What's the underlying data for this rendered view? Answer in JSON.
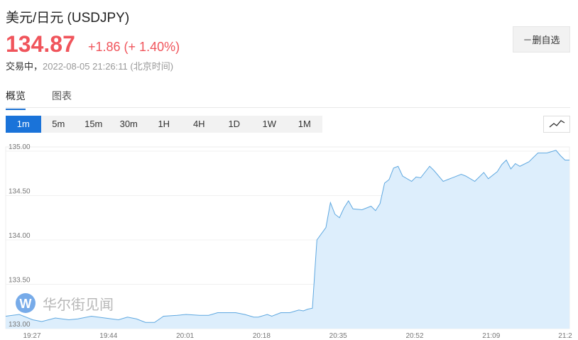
{
  "header": {
    "title": "美元/日元  (USDJPY)",
    "price": "134.87",
    "change": "+1.86 (+ 1.40%)",
    "status": "交易中，",
    "timestamp": "2022-08-05 21:26:11  (北京时间)",
    "watch_button": "－删自选"
  },
  "tabs": [
    {
      "label": "概览",
      "active": true
    },
    {
      "label": "图表",
      "active": false
    }
  ],
  "ranges": [
    {
      "label": "1m",
      "active": true
    },
    {
      "label": "5m"
    },
    {
      "label": "15m"
    },
    {
      "label": "30m"
    },
    {
      "label": "1H"
    },
    {
      "label": "4H"
    },
    {
      "label": "1D"
    },
    {
      "label": "1W"
    },
    {
      "label": "1M"
    }
  ],
  "chart_type_icon": "line-chart-icon",
  "watermark": "华尔街见闻",
  "colors": {
    "up": "#f0545b",
    "accent": "#1a73d9",
    "line": "#5fa8e0",
    "fill": "#ddeefc"
  },
  "chart_data": {
    "type": "area",
    "ylim": [
      133.0,
      135.0
    ],
    "xlim": [
      "19:21",
      "21:26"
    ],
    "y_ticks": [
      "135.00",
      "134.50",
      "134.00",
      "133.50",
      "133.00"
    ],
    "x_ticks": [
      "19:27",
      "19:44",
      "20:01",
      "20:18",
      "20:35",
      "20:52",
      "21:09",
      "21:2"
    ],
    "grid": true,
    "points": [
      [
        "19:21",
        133.14
      ],
      [
        "19:24",
        133.16
      ],
      [
        "19:27",
        133.1
      ],
      [
        "19:29",
        133.08
      ],
      [
        "19:32",
        133.12
      ],
      [
        "19:35",
        133.1
      ],
      [
        "19:37",
        133.11
      ],
      [
        "19:40",
        133.14
      ],
      [
        "19:43",
        133.12
      ],
      [
        "19:46",
        133.1
      ],
      [
        "19:48",
        133.13
      ],
      [
        "19:50",
        133.11
      ],
      [
        "19:52",
        133.07
      ],
      [
        "19:54",
        133.07
      ],
      [
        "19:56",
        133.14
      ],
      [
        "19:59",
        133.15
      ],
      [
        "20:01",
        133.16
      ],
      [
        "20:04",
        133.15
      ],
      [
        "20:06",
        133.15
      ],
      [
        "20:08",
        133.18
      ],
      [
        "20:10",
        133.18
      ],
      [
        "20:12",
        133.18
      ],
      [
        "20:14",
        133.16
      ],
      [
        "20:16",
        133.13
      ],
      [
        "20:17",
        133.13
      ],
      [
        "20:19",
        133.16
      ],
      [
        "20:20",
        133.14
      ],
      [
        "20:22",
        133.18
      ],
      [
        "20:24",
        133.18
      ],
      [
        "20:26",
        133.21
      ],
      [
        "20:27",
        133.2
      ],
      [
        "20:28",
        133.22
      ],
      [
        "20:29",
        133.23
      ],
      [
        "20:30",
        134.0
      ],
      [
        "20:32",
        134.14
      ],
      [
        "20:33",
        134.42
      ],
      [
        "20:34",
        134.29
      ],
      [
        "20:35",
        134.25
      ],
      [
        "20:36",
        134.36
      ],
      [
        "20:37",
        134.44
      ],
      [
        "20:38",
        134.35
      ],
      [
        "20:40",
        134.34
      ],
      [
        "20:41",
        134.36
      ],
      [
        "20:42",
        134.38
      ],
      [
        "20:43",
        134.33
      ],
      [
        "20:44",
        134.41
      ],
      [
        "20:45",
        134.64
      ],
      [
        "20:46",
        134.68
      ],
      [
        "20:47",
        134.81
      ],
      [
        "20:48",
        134.83
      ],
      [
        "20:49",
        134.72
      ],
      [
        "20:51",
        134.66
      ],
      [
        "20:52",
        134.71
      ],
      [
        "20:53",
        134.7
      ],
      [
        "20:55",
        134.83
      ],
      [
        "20:56",
        134.78
      ],
      [
        "20:58",
        134.66
      ],
      [
        "20:59",
        134.68
      ],
      [
        "21:02",
        134.74
      ],
      [
        "21:03",
        134.72
      ],
      [
        "21:05",
        134.66
      ],
      [
        "21:07",
        134.76
      ],
      [
        "21:08",
        134.69
      ],
      [
        "21:10",
        134.77
      ],
      [
        "21:11",
        134.85
      ],
      [
        "21:12",
        134.9
      ],
      [
        "21:13",
        134.8
      ],
      [
        "21:14",
        134.86
      ],
      [
        "21:15",
        134.83
      ],
      [
        "21:17",
        134.88
      ],
      [
        "21:19",
        134.98
      ],
      [
        "21:21",
        134.98
      ],
      [
        "21:23",
        135.01
      ],
      [
        "21:24",
        134.95
      ],
      [
        "21:25",
        134.9
      ],
      [
        "21:26",
        134.9
      ]
    ]
  }
}
